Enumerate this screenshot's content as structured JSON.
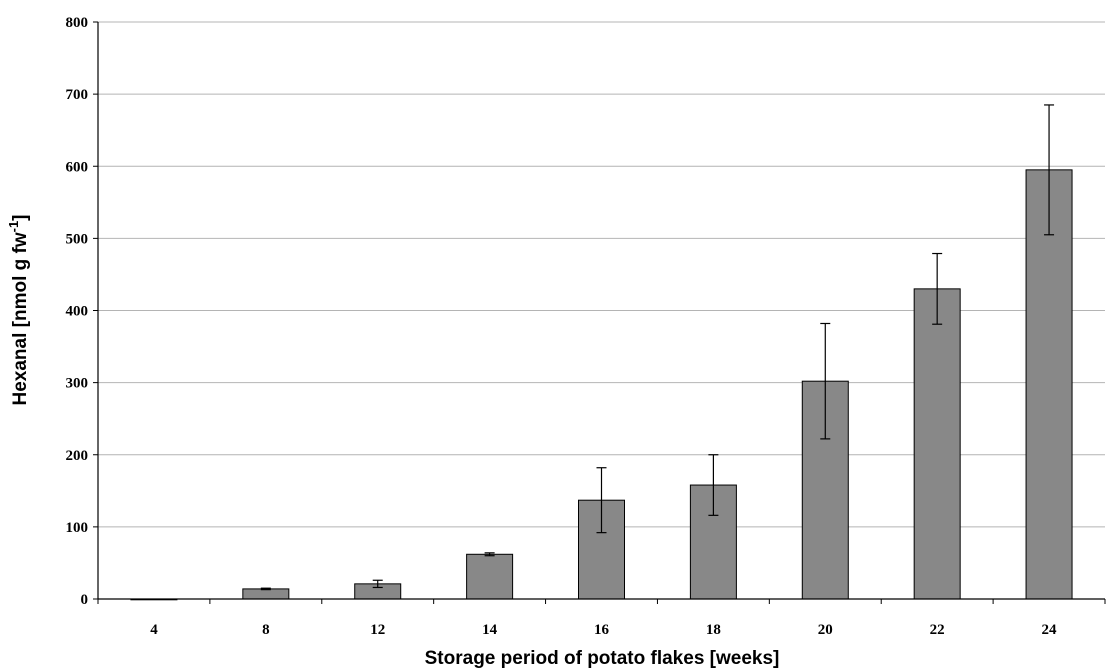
{
  "chart_data": {
    "type": "bar",
    "xlabel": "Storage period of potato flakes [weeks]",
    "ylabel": "Hexanal [nmol g fw",
    "ylabel_superscript": "-1",
    "ylabel_suffix": "]",
    "ylim": [
      0,
      800
    ],
    "yticks": [
      0,
      100,
      200,
      300,
      400,
      500,
      600,
      700,
      800
    ],
    "grid": "horizontal",
    "categories": [
      "4",
      "8",
      "12",
      "14",
      "16",
      "18",
      "20",
      "22",
      "24"
    ],
    "series": [
      {
        "values": [
          0,
          14,
          21,
          62,
          137,
          158,
          302,
          430,
          595
        ],
        "error": [
          0,
          1,
          5,
          2,
          45,
          42,
          80,
          49,
          90
        ]
      }
    ],
    "colors": {
      "bar": "#888888",
      "bar_stroke": "#000000",
      "grid": "#b4b4b4",
      "axis": "#000000"
    }
  }
}
